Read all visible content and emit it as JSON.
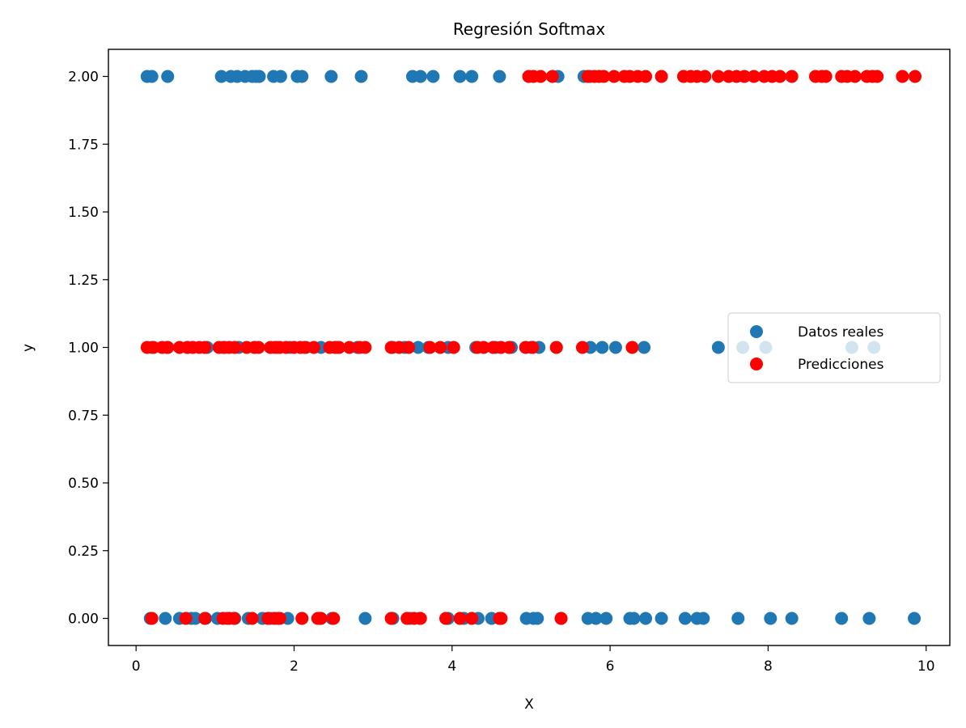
{
  "chart_data": {
    "type": "scatter",
    "title": "Regresión Softmax",
    "xlabel": "X",
    "ylabel": "y",
    "xlim": [
      -0.35,
      10.3
    ],
    "ylim": [
      -0.1,
      2.1
    ],
    "xticks": [
      0,
      2,
      4,
      6,
      8,
      10
    ],
    "xtick_labels": [
      "0",
      "2",
      "4",
      "6",
      "8",
      "10"
    ],
    "yticks": [
      0,
      0.25,
      0.5,
      0.75,
      1.0,
      1.25,
      1.5,
      1.75,
      2.0
    ],
    "ytick_labels": [
      "0.00",
      "0.25",
      "0.50",
      "0.75",
      "1.00",
      "1.25",
      "1.50",
      "1.75",
      "2.00"
    ],
    "grid": false,
    "legend": "center-right",
    "series": [
      {
        "name": "Datos reales",
        "color": "#1f77b4",
        "points": [
          [
            0.14,
            2
          ],
          [
            0.2,
            2
          ],
          [
            0.4,
            2
          ],
          [
            1.08,
            2
          ],
          [
            1.2,
            2
          ],
          [
            1.28,
            2
          ],
          [
            1.38,
            2
          ],
          [
            1.47,
            2
          ],
          [
            1.52,
            2
          ],
          [
            1.56,
            2
          ],
          [
            1.74,
            2
          ],
          [
            1.83,
            2
          ],
          [
            2.04,
            2
          ],
          [
            2.1,
            2
          ],
          [
            2.47,
            2
          ],
          [
            2.85,
            2
          ],
          [
            3.5,
            2
          ],
          [
            3.6,
            2
          ],
          [
            3.76,
            2
          ],
          [
            4.1,
            2
          ],
          [
            4.25,
            2
          ],
          [
            4.6,
            2
          ],
          [
            5.34,
            2
          ],
          [
            5.67,
            2
          ],
          [
            5.75,
            2
          ],
          [
            0.2,
            1
          ],
          [
            0.4,
            1
          ],
          [
            0.65,
            1
          ],
          [
            0.9,
            1
          ],
          [
            1.1,
            1
          ],
          [
            1.3,
            1
          ],
          [
            1.5,
            1
          ],
          [
            1.75,
            1
          ],
          [
            1.95,
            1
          ],
          [
            2.15,
            1
          ],
          [
            2.34,
            1
          ],
          [
            2.55,
            1
          ],
          [
            2.8,
            1
          ],
          [
            3.25,
            1
          ],
          [
            3.4,
            1
          ],
          [
            3.57,
            1
          ],
          [
            3.7,
            1
          ],
          [
            3.95,
            1
          ],
          [
            4.3,
            1
          ],
          [
            4.55,
            1
          ],
          [
            4.75,
            1
          ],
          [
            5.0,
            1
          ],
          [
            5.1,
            1
          ],
          [
            5.32,
            1
          ],
          [
            5.75,
            1
          ],
          [
            5.9,
            1
          ],
          [
            6.07,
            1
          ],
          [
            6.43,
            1
          ],
          [
            7.37,
            1
          ],
          [
            7.68,
            1
          ],
          [
            7.97,
            1
          ],
          [
            9.06,
            1
          ],
          [
            9.34,
            1
          ],
          [
            0.18,
            0
          ],
          [
            0.37,
            0
          ],
          [
            0.55,
            0
          ],
          [
            0.7,
            0
          ],
          [
            0.75,
            0
          ],
          [
            0.88,
            0
          ],
          [
            1.03,
            0
          ],
          [
            1.15,
            0
          ],
          [
            1.25,
            0
          ],
          [
            1.42,
            0
          ],
          [
            1.6,
            0
          ],
          [
            1.7,
            0
          ],
          [
            1.79,
            0
          ],
          [
            1.92,
            0
          ],
          [
            2.1,
            0
          ],
          [
            2.32,
            0
          ],
          [
            2.48,
            0
          ],
          [
            2.9,
            0
          ],
          [
            3.25,
            0
          ],
          [
            3.47,
            0
          ],
          [
            3.59,
            0
          ],
          [
            3.95,
            0
          ],
          [
            4.15,
            0
          ],
          [
            4.33,
            0
          ],
          [
            4.5,
            0
          ],
          [
            4.62,
            0
          ],
          [
            4.94,
            0
          ],
          [
            5.03,
            0
          ],
          [
            5.08,
            0
          ],
          [
            5.38,
            0
          ],
          [
            5.72,
            0
          ],
          [
            5.82,
            0
          ],
          [
            5.95,
            0
          ],
          [
            6.25,
            0
          ],
          [
            6.3,
            0
          ],
          [
            6.45,
            0
          ],
          [
            6.65,
            0
          ],
          [
            6.95,
            0
          ],
          [
            7.1,
            0
          ],
          [
            7.18,
            0
          ],
          [
            7.62,
            0
          ],
          [
            8.03,
            0
          ],
          [
            8.3,
            0
          ],
          [
            8.93,
            0
          ],
          [
            9.28,
            0
          ],
          [
            9.85,
            0
          ]
        ]
      },
      {
        "name": "Predicciones",
        "color": "#ff0000",
        "points": [
          [
            4.97,
            2
          ],
          [
            5.03,
            2
          ],
          [
            5.12,
            2
          ],
          [
            5.27,
            2
          ],
          [
            5.72,
            2
          ],
          [
            5.8,
            2
          ],
          [
            5.86,
            2
          ],
          [
            5.92,
            2
          ],
          [
            6.05,
            2
          ],
          [
            6.18,
            2
          ],
          [
            6.25,
            2
          ],
          [
            6.35,
            2
          ],
          [
            6.45,
            2
          ],
          [
            6.65,
            2
          ],
          [
            6.93,
            2
          ],
          [
            7.02,
            2
          ],
          [
            7.1,
            2
          ],
          [
            7.2,
            2
          ],
          [
            7.37,
            2
          ],
          [
            7.5,
            2
          ],
          [
            7.6,
            2
          ],
          [
            7.7,
            2
          ],
          [
            7.82,
            2
          ],
          [
            7.95,
            2
          ],
          [
            8.05,
            2
          ],
          [
            8.15,
            2
          ],
          [
            8.3,
            2
          ],
          [
            8.6,
            2
          ],
          [
            8.68,
            2
          ],
          [
            8.73,
            2
          ],
          [
            8.93,
            2
          ],
          [
            9.0,
            2
          ],
          [
            9.1,
            2
          ],
          [
            9.25,
            2
          ],
          [
            9.32,
            2
          ],
          [
            9.38,
            2
          ],
          [
            9.7,
            2
          ],
          [
            9.86,
            2
          ],
          [
            0.14,
            1
          ],
          [
            0.22,
            1
          ],
          [
            0.33,
            1
          ],
          [
            0.4,
            1
          ],
          [
            0.55,
            1
          ],
          [
            0.65,
            1
          ],
          [
            0.72,
            1
          ],
          [
            0.8,
            1
          ],
          [
            0.87,
            1
          ],
          [
            1.05,
            1
          ],
          [
            1.12,
            1
          ],
          [
            1.18,
            1
          ],
          [
            1.25,
            1
          ],
          [
            1.4,
            1
          ],
          [
            1.5,
            1
          ],
          [
            1.55,
            1
          ],
          [
            1.7,
            1
          ],
          [
            1.78,
            1
          ],
          [
            1.82,
            1
          ],
          [
            1.9,
            1
          ],
          [
            2.0,
            1
          ],
          [
            2.08,
            1
          ],
          [
            2.14,
            1
          ],
          [
            2.25,
            1
          ],
          [
            2.45,
            1
          ],
          [
            2.52,
            1
          ],
          [
            2.57,
            1
          ],
          [
            2.7,
            1
          ],
          [
            2.83,
            1
          ],
          [
            2.9,
            1
          ],
          [
            3.23,
            1
          ],
          [
            3.33,
            1
          ],
          [
            3.45,
            1
          ],
          [
            3.72,
            1
          ],
          [
            3.85,
            1
          ],
          [
            4.02,
            1
          ],
          [
            4.32,
            1
          ],
          [
            4.4,
            1
          ],
          [
            4.52,
            1
          ],
          [
            4.62,
            1
          ],
          [
            4.72,
            1
          ],
          [
            4.93,
            1
          ],
          [
            5.02,
            1
          ],
          [
            5.32,
            1
          ],
          [
            5.65,
            1
          ],
          [
            6.28,
            1
          ],
          [
            0.2,
            0
          ],
          [
            0.63,
            0
          ],
          [
            0.87,
            0
          ],
          [
            1.1,
            0
          ],
          [
            1.18,
            0
          ],
          [
            1.24,
            0
          ],
          [
            1.47,
            0
          ],
          [
            1.67,
            0
          ],
          [
            1.75,
            0
          ],
          [
            1.82,
            0
          ],
          [
            2.1,
            0
          ],
          [
            2.3,
            0
          ],
          [
            2.34,
            0
          ],
          [
            2.5,
            0
          ],
          [
            3.23,
            0
          ],
          [
            3.43,
            0
          ],
          [
            3.52,
            0
          ],
          [
            3.6,
            0
          ],
          [
            3.92,
            0
          ],
          [
            4.1,
            0
          ],
          [
            4.25,
            0
          ],
          [
            4.6,
            0
          ],
          [
            4.62,
            0
          ],
          [
            5.38,
            0
          ]
        ]
      }
    ]
  }
}
